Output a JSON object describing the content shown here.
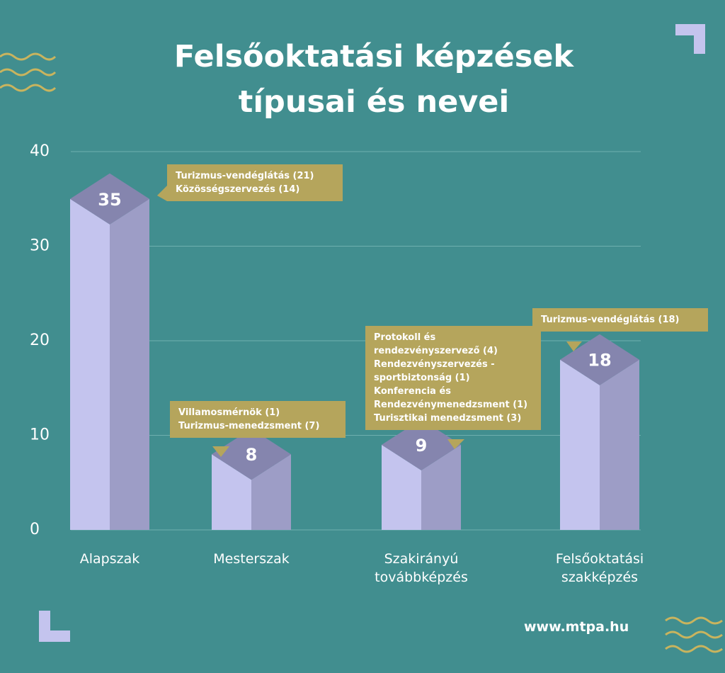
{
  "chart_data": {
    "type": "bar3d",
    "title": "Felsőoktatási képzések típusai és nevei",
    "categories": [
      "Alapszak",
      "Mesterszak",
      "Szakirányú továbbképzés",
      "Felsőoktatási szakképzés"
    ],
    "values": [
      35,
      8,
      9,
      18
    ],
    "ylim": [
      0,
      40
    ],
    "yticks": [
      0,
      10,
      20,
      30,
      40
    ],
    "grid": true,
    "colors": {
      "front": "#c4c4ee",
      "side": "#9d9dc6",
      "top": "#8585ae"
    },
    "annotations": [
      [
        "Turizmus-vendéglátás (21)",
        "Közösségszervezés (14)"
      ],
      [
        "Villamosmérnök (1)",
        "Turizmus-menedzsment (7)"
      ],
      [
        "Protokoll és",
        "rendezvényszervező (4)",
        "Rendezvényszervezés -",
        "sportbiztonság (1)",
        "Konferencia és",
        "Rendezvénymenedzsment (1)",
        "Turisztikai menedzsment (3)"
      ],
      [
        "Turizmus-vendéglátás (18)"
      ]
    ],
    "footer": "www.mtpa.hu"
  }
}
